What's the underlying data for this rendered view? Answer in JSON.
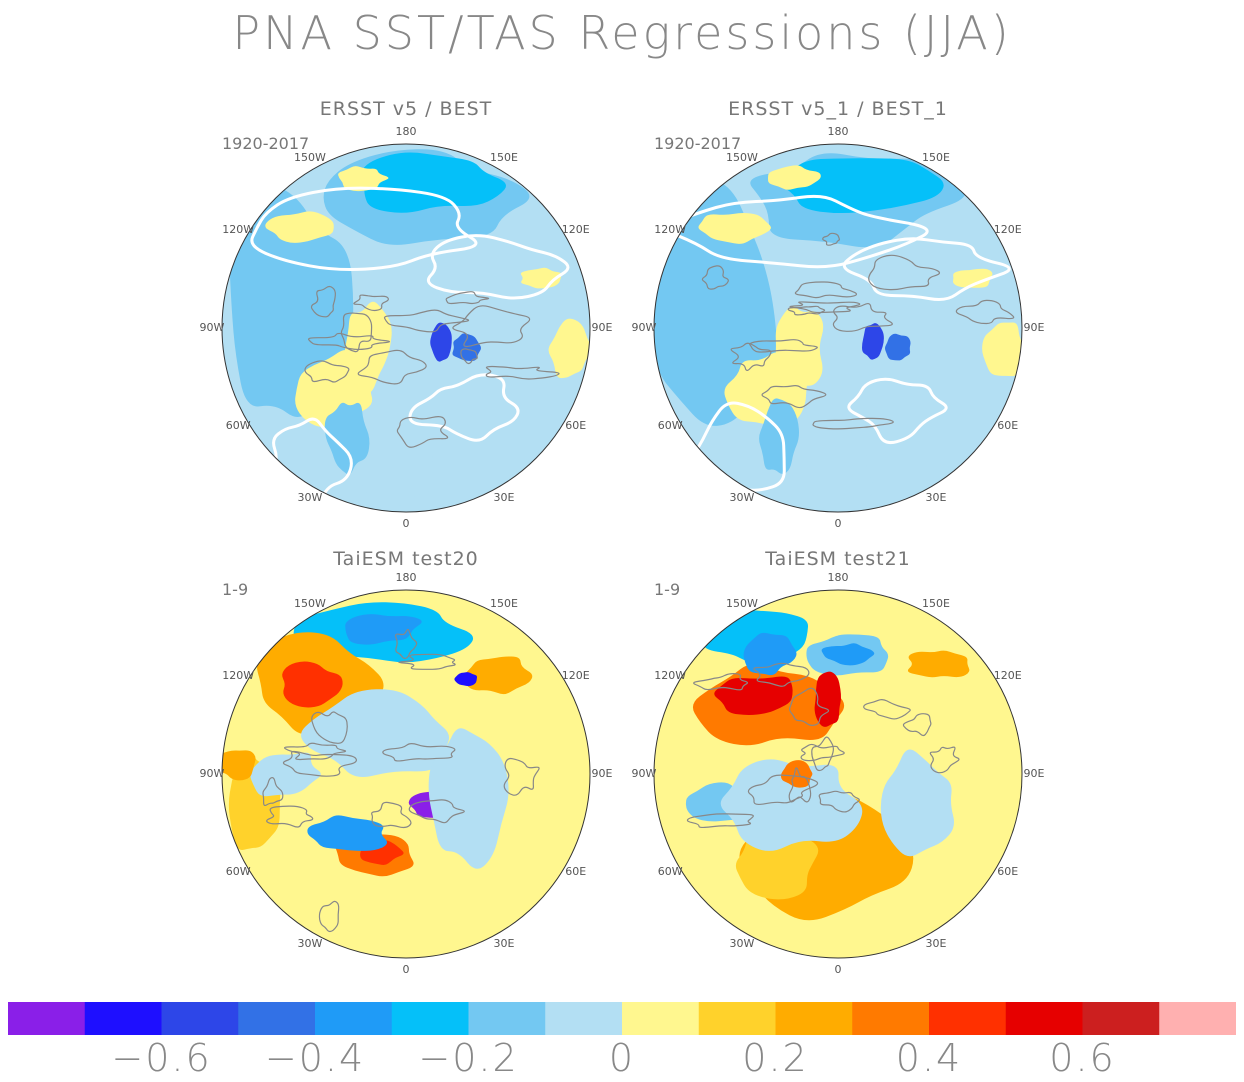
{
  "title": "PNA SST/TAS Regressions (JJA)",
  "panels": [
    {
      "title": "ERSST v5 / BEST",
      "period": "1920-2017",
      "style": "obs"
    },
    {
      "title": "ERSST v5_1 / BEST_1",
      "period": "1920-2017",
      "style": "obs"
    },
    {
      "title": "TaiESM test20",
      "period": "1-9",
      "style": "model"
    },
    {
      "title": "TaiESM test21",
      "period": "1-9",
      "style": "model2"
    }
  ],
  "longitude_labels": [
    "180",
    "150E",
    "120E",
    "90E",
    "60E",
    "30E",
    "0",
    "30W",
    "60W",
    "90W",
    "120W",
    "150W"
  ],
  "colorbar": {
    "colors": [
      "#8a1fe8",
      "#1e0fff",
      "#2d46e8",
      "#3271e6",
      "#1f9bf7",
      "#05c0f9",
      "#73c8f2",
      "#b3dff3",
      "#fff78f",
      "#ffd22b",
      "#ffac00",
      "#ff7a00",
      "#ff3000",
      "#e60000",
      "#cc1f1f",
      "#ffb0b0"
    ],
    "labels": [
      "−0.6",
      "−0.4",
      "−0.2",
      "0",
      "0.2",
      "0.4",
      "0.6"
    ]
  },
  "land_color": "#ffffff",
  "coast_color": "#888888"
}
